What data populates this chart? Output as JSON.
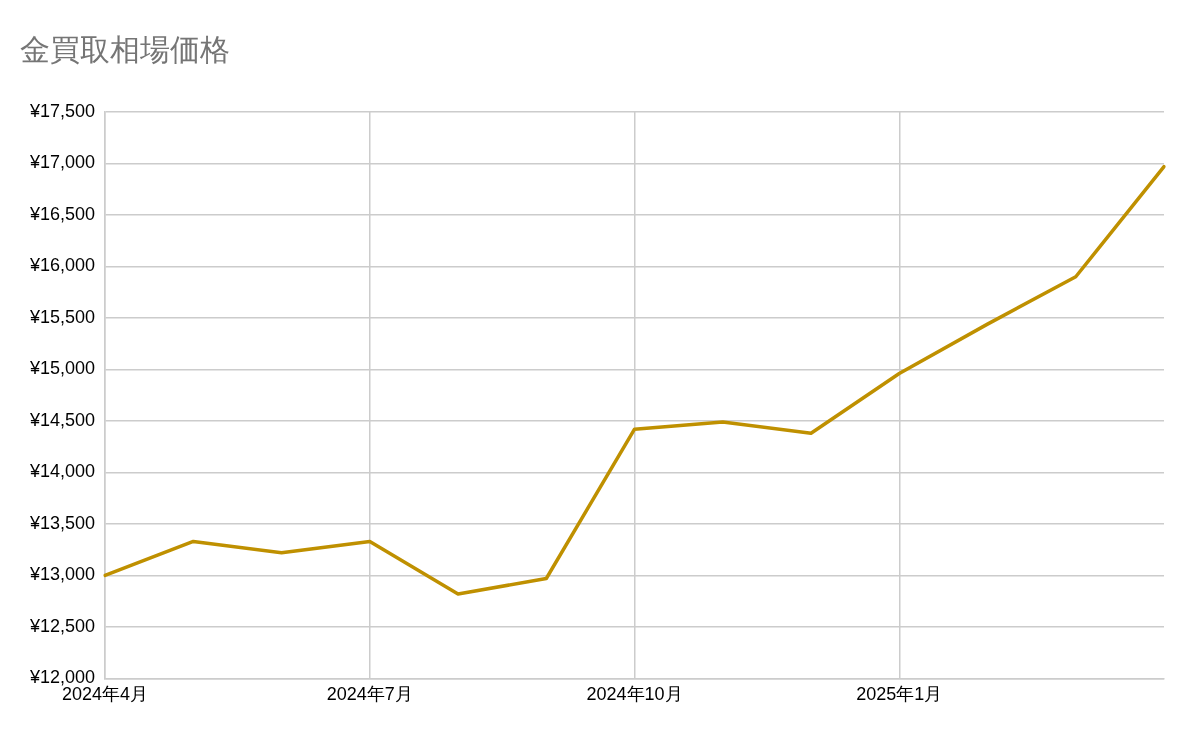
{
  "chart_data": {
    "type": "line",
    "title": "金買取相場価格",
    "categories": [
      "2024年4月",
      null,
      null,
      "2024年7月",
      null,
      null,
      "2024年10月",
      null,
      null,
      "2025年1月",
      null,
      null,
      null
    ],
    "series": [
      {
        "color": "#bf9000",
        "values": [
          13000,
          13330,
          13220,
          13330,
          12820,
          12970,
          14420,
          14490,
          14380,
          14960,
          15440,
          15900,
          16970
        ]
      }
    ],
    "ylim": [
      12000,
      17500
    ],
    "yticks": [
      {
        "value": 12000,
        "label": "¥12,000"
      },
      {
        "value": 12500,
        "label": "¥12,500"
      },
      {
        "value": 13000,
        "label": "¥13,000"
      },
      {
        "value": 13500,
        "label": "¥13,500"
      },
      {
        "value": 14000,
        "label": "¥14,000"
      },
      {
        "value": 14500,
        "label": "¥14,500"
      },
      {
        "value": 15000,
        "label": "¥15,000"
      },
      {
        "value": 15500,
        "label": "¥15,500"
      },
      {
        "value": 16000,
        "label": "¥16,000"
      },
      {
        "value": 16500,
        "label": "¥16,500"
      },
      {
        "value": 17000,
        "label": "¥17,000"
      },
      {
        "value": 17500,
        "label": "¥17,500"
      }
    ],
    "grid": true,
    "legend": false,
    "marker": "none",
    "line_style": "solid"
  }
}
